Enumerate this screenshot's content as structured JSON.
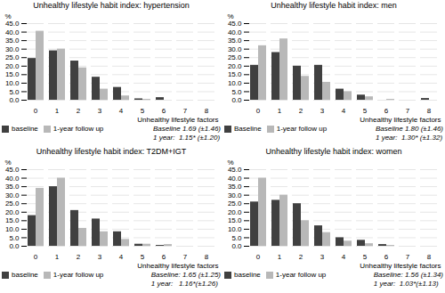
{
  "chart_data": [
    {
      "type": "bar",
      "title": "Unhealthy lifestyle habit index: hypertension",
      "categories": [
        "0",
        "1",
        "2",
        "3",
        "4",
        "5",
        "6",
        "7",
        "8"
      ],
      "series": [
        {
          "name": "baseline",
          "color": "#404040",
          "values": [
            24.5,
            29.0,
            23.0,
            13.5,
            7.5,
            0.8,
            1.5,
            0.0,
            0.0
          ]
        },
        {
          "name": "1-year follow up",
          "color": "#b8b8b8",
          "values": [
            40.5,
            30.0,
            19.0,
            6.5,
            2.5,
            0.5,
            0.0,
            0.0,
            0.0
          ]
        }
      ],
      "xlabel": "Unhealthy lifestyle factors",
      "ylabel": "%",
      "ylim": [
        0,
        45
      ],
      "yticks": [
        {
          "value": 0,
          "label": "0.0"
        },
        {
          "value": 5,
          "label": "5.0"
        },
        {
          "value": 10,
          "label": "10.0"
        },
        {
          "value": 15,
          "label": "15.0"
        },
        {
          "value": 20,
          "label": "20.0"
        },
        {
          "value": 25,
          "label": "25.0"
        },
        {
          "value": 30,
          "label": "30.0"
        },
        {
          "value": 35,
          "label": "35.0"
        },
        {
          "value": 40,
          "label": "40.0"
        },
        {
          "value": 45,
          "label": "45.0"
        }
      ],
      "annotations": [
        "Baseline 1.69 (±1.46)",
        "1 year:  1.15* (±1.20)"
      ],
      "grid": true,
      "legend": "lower left"
    },
    {
      "type": "bar",
      "title": "Unhealthy lifestyle habit index: men",
      "categories": [
        "0",
        "1",
        "2",
        "3",
        "4",
        "5",
        "6",
        "7",
        "8"
      ],
      "series": [
        {
          "name": "Baseline",
          "color": "#404040",
          "values": [
            20.5,
            28.0,
            20.0,
            20.5,
            6.5,
            3.0,
            0.0,
            0.0,
            1.0
          ]
        },
        {
          "name": "1-year follow up",
          "color": "#b8b8b8",
          "values": [
            32.0,
            36.0,
            14.0,
            10.5,
            5.0,
            2.0,
            0.5,
            0.0,
            0.0
          ]
        }
      ],
      "xlabel": "Unhealthy lifestyle factors",
      "ylabel": "%",
      "ylim": [
        0,
        45
      ],
      "yticks": [
        {
          "value": 0,
          "label": "0.0"
        },
        {
          "value": 5,
          "label": "5.0"
        },
        {
          "value": 10,
          "label": "10.0"
        },
        {
          "value": 15,
          "label": "15.0"
        },
        {
          "value": 20,
          "label": "20.0"
        },
        {
          "value": 25,
          "label": "25.0"
        },
        {
          "value": 30,
          "label": "30.0"
        },
        {
          "value": 35,
          "label": "35.0"
        },
        {
          "value": 40,
          "label": "40.0"
        },
        {
          "value": 45,
          "label": "45.0"
        }
      ],
      "annotations": [
        "Baseline 1.80 (±1.46)",
        "1 year:  1.30* (±1.32)"
      ],
      "grid": true,
      "legend": "lower left"
    },
    {
      "type": "bar",
      "title": "Unhealthy lifestyle habit index: T2DM+IGT",
      "categories": [
        "0",
        "1",
        "2",
        "3",
        "4",
        "5",
        "6",
        "7",
        "8"
      ],
      "series": [
        {
          "name": "baseline",
          "color": "#404040",
          "values": [
            18.0,
            35.0,
            21.0,
            16.0,
            8.5,
            1.2,
            0.5,
            0.0,
            0.0
          ]
        },
        {
          "name": "1-year follow up",
          "color": "#b8b8b8",
          "values": [
            34.0,
            40.0,
            10.5,
            8.5,
            4.0,
            1.2,
            1.0,
            0.0,
            0.0
          ]
        }
      ],
      "xlabel": "Unhealthy lifestyle factors",
      "ylabel": "%",
      "ylim": [
        0,
        45
      ],
      "yticks": [
        {
          "value": 0,
          "label": "0.0"
        },
        {
          "value": 5,
          "label": "5.0"
        },
        {
          "value": 10,
          "label": "10.0"
        },
        {
          "value": 15,
          "label": "15.0"
        },
        {
          "value": 20,
          "label": "20.0"
        },
        {
          "value": 25,
          "label": "25.0"
        },
        {
          "value": 30,
          "label": "30.0"
        },
        {
          "value": 35,
          "label": "35.0"
        },
        {
          "value": 40,
          "label": "40.0"
        },
        {
          "value": 45,
          "label": "45.0"
        }
      ],
      "annotations": [
        "Baseline: 1.65 (±1.25)",
        "1 year:   1.16*(±1.26)"
      ],
      "grid": true,
      "legend": "lower left"
    },
    {
      "type": "bar",
      "title": "Unhealthy lifestyle habit index: women",
      "categories": [
        "0",
        "1",
        "2",
        "3",
        "4",
        "5",
        "6",
        "7",
        "8"
      ],
      "series": [
        {
          "name": "baseline",
          "color": "#404040",
          "values": [
            26.0,
            27.0,
            25.0,
            12.0,
            5.0,
            3.5,
            1.0,
            0.0,
            0.0
          ]
        },
        {
          "name": "1-year follow up",
          "color": "#b8b8b8",
          "values": [
            40.0,
            30.0,
            15.0,
            8.0,
            3.0,
            1.5,
            0.5,
            0.0,
            0.0
          ]
        }
      ],
      "xlabel": "Unhealthy lifestyle factors",
      "ylabel": "%",
      "ylim": [
        0,
        45
      ],
      "yticks": [
        {
          "value": 0,
          "label": "0.0"
        },
        {
          "value": 5,
          "label": "5.0"
        },
        {
          "value": 10,
          "label": "10.0"
        },
        {
          "value": 15,
          "label": "15.0"
        },
        {
          "value": 20,
          "label": "20.0"
        },
        {
          "value": 25,
          "label": "25.0"
        },
        {
          "value": 30,
          "label": "30.0"
        },
        {
          "value": 35,
          "label": "35.0"
        },
        {
          "value": 40,
          "label": "40.0"
        },
        {
          "value": 45,
          "label": "45.0"
        }
      ],
      "annotations": [
        "Baseline: 1.56 (±1.34)",
        "1 year:  1.03*(±1.13)"
      ],
      "grid": true,
      "legend": "lower left"
    }
  ]
}
